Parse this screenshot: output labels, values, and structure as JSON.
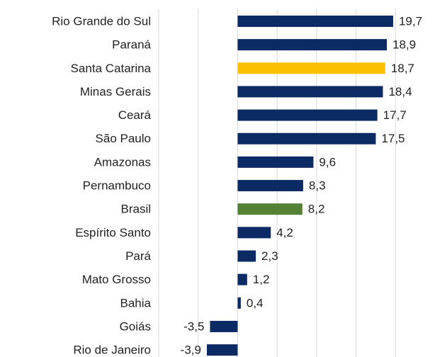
{
  "chart_data": {
    "type": "barh",
    "categories": [
      "Rio Grande do Sul",
      "Paraná",
      "Santa Catarina",
      "Minas Gerais",
      "Ceará",
      "São Paulo",
      "Amazonas",
      "Pernambuco",
      "Brasil",
      "Espírito Santo",
      "Pará",
      "Mato Grosso",
      "Bahia",
      "Goiás",
      "Rio de Janeiro"
    ],
    "values": [
      19.7,
      18.9,
      18.7,
      18.4,
      17.7,
      17.5,
      9.6,
      8.3,
      8.2,
      4.2,
      2.3,
      1.2,
      0.4,
      -3.5,
      -3.9
    ],
    "value_labels": [
      "19,7",
      "18,9",
      "18,7",
      "18,4",
      "17,7",
      "17,5",
      "9,6",
      "8,3",
      "8,2",
      "4,2",
      "2,3",
      "1,2",
      "0,4",
      "-3,5",
      "-3,9"
    ],
    "colors": [
      "#0c2a64",
      "#0c2a64",
      "#fcc000",
      "#0c2a64",
      "#0c2a64",
      "#0c2a64",
      "#0c2a64",
      "#0c2a64",
      "#548235",
      "#0c2a64",
      "#0c2a64",
      "#0c2a64",
      "#0c2a64",
      "#0c2a64",
      "#0c2a64"
    ],
    "xlim": [
      -10,
      25
    ],
    "xticks": [
      -10,
      -5,
      0,
      5,
      10,
      15,
      20
    ],
    "grid": true
  }
}
